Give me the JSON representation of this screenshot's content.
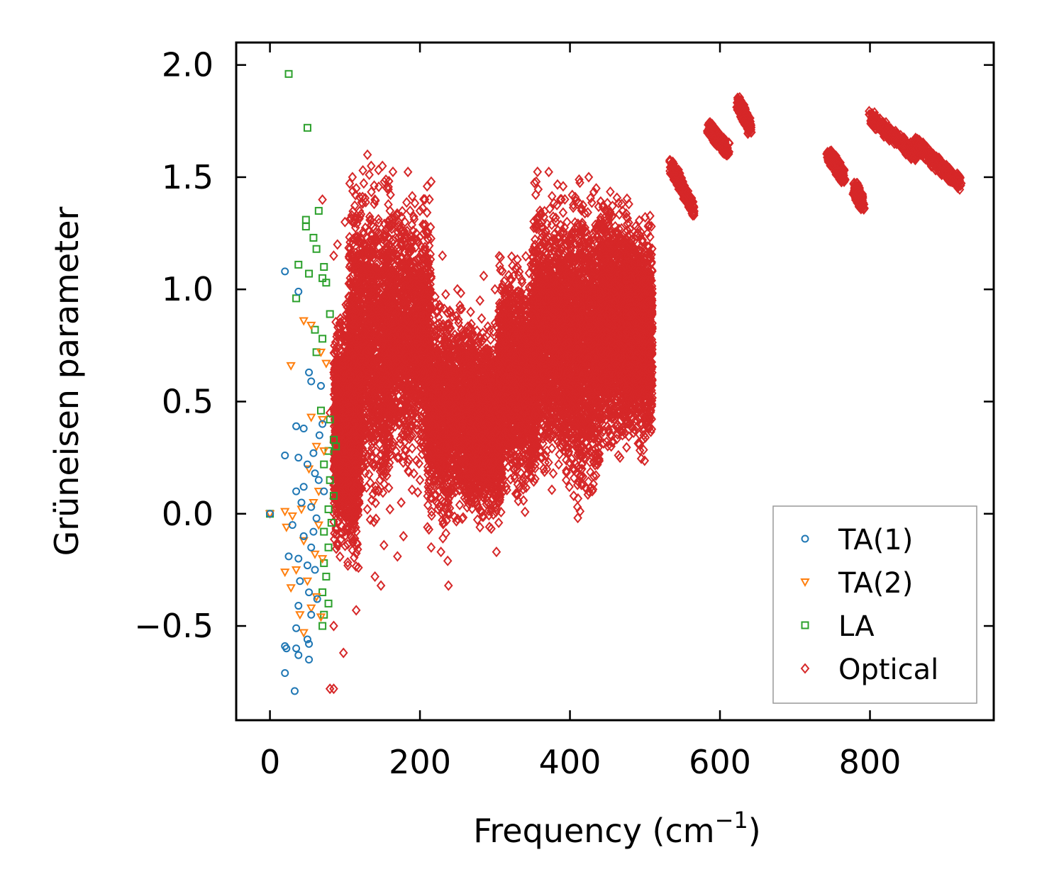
{
  "chart_data": {
    "type": "scatter",
    "title": "",
    "xlabel": "Frequency (cm",
    "xlabel_sup": "−1",
    "xlabel_close": ")",
    "ylabel": "Grüneisen parameter",
    "xlim": [
      -45,
      965
    ],
    "ylim": [
      -0.92,
      2.1
    ],
    "xticks": [
      0,
      200,
      400,
      600,
      800
    ],
    "xtick_labels": [
      "0",
      "200",
      "400",
      "600",
      "800"
    ],
    "yticks": [
      -0.5,
      0.0,
      0.5,
      1.0,
      1.5,
      2.0
    ],
    "ytick_labels": [
      "−0.5",
      "0.0",
      "0.5",
      "1.0",
      "1.5",
      "2.0"
    ],
    "grid": false,
    "legend_position": "bottom-right",
    "series": [
      {
        "name": "TA(1)",
        "marker": "circle",
        "color": "#1f77b4",
        "points": [
          [
            0,
            0
          ],
          [
            20,
            1.08
          ],
          [
            38,
            0.99
          ],
          [
            20,
            0.26
          ],
          [
            35,
            0.39
          ],
          [
            45,
            0.38
          ],
          [
            52,
            0.63
          ],
          [
            55,
            0.59
          ],
          [
            68,
            0.57
          ],
          [
            38,
            0.25
          ],
          [
            50,
            0.22
          ],
          [
            58,
            0.27
          ],
          [
            65,
            0.15
          ],
          [
            72,
            0.1
          ],
          [
            35,
            0.1
          ],
          [
            42,
            0.05
          ],
          [
            55,
            0.03
          ],
          [
            62,
            -0.02
          ],
          [
            30,
            -0.05
          ],
          [
            45,
            -0.1
          ],
          [
            55,
            -0.15
          ],
          [
            25,
            -0.19
          ],
          [
            38,
            -0.2
          ],
          [
            50,
            -0.23
          ],
          [
            60,
            -0.25
          ],
          [
            40,
            -0.3
          ],
          [
            52,
            -0.35
          ],
          [
            63,
            -0.38
          ],
          [
            38,
            -0.41
          ],
          [
            55,
            -0.45
          ],
          [
            35,
            -0.51
          ],
          [
            50,
            -0.56
          ],
          [
            52,
            -0.58
          ],
          [
            20,
            -0.59
          ],
          [
            22,
            -0.6
          ],
          [
            35,
            -0.6
          ],
          [
            38,
            -0.63
          ],
          [
            52,
            -0.65
          ],
          [
            20,
            -0.71
          ],
          [
            33,
            -0.79
          ],
          [
            60,
            0.18
          ],
          [
            66,
            0.35
          ],
          [
            70,
            0.4
          ],
          [
            45,
            0.12
          ],
          [
            58,
            -0.08
          ]
        ]
      },
      {
        "name": "TA(2)",
        "marker": "triangle-down",
        "color": "#ff7f0e",
        "points": [
          [
            0,
            0
          ],
          [
            28,
            0.66
          ],
          [
            45,
            0.86
          ],
          [
            55,
            0.84
          ],
          [
            68,
            0.72
          ],
          [
            75,
            0.67
          ],
          [
            55,
            0.43
          ],
          [
            70,
            0.42
          ],
          [
            62,
            0.3
          ],
          [
            72,
            0.28
          ],
          [
            52,
            0.2
          ],
          [
            65,
            0.1
          ],
          [
            20,
            0.01
          ],
          [
            30,
            -0.01
          ],
          [
            42,
            0.02
          ],
          [
            58,
            0.05
          ],
          [
            22,
            -0.06
          ],
          [
            45,
            -0.12
          ],
          [
            60,
            -0.18
          ],
          [
            20,
            -0.26
          ],
          [
            35,
            -0.25
          ],
          [
            28,
            -0.33
          ],
          [
            50,
            -0.3
          ],
          [
            62,
            -0.37
          ],
          [
            40,
            -0.45
          ],
          [
            55,
            -0.42
          ],
          [
            68,
            -0.46
          ],
          [
            45,
            -0.53
          ],
          [
            70,
            -0.2
          ],
          [
            65,
            -0.05
          ]
        ]
      },
      {
        "name": "LA",
        "marker": "square",
        "color": "#2ca02c",
        "points": [
          [
            0,
            0
          ],
          [
            25,
            1.96
          ],
          [
            50,
            1.72
          ],
          [
            65,
            1.35
          ],
          [
            48,
            1.31
          ],
          [
            48,
            1.28
          ],
          [
            58,
            1.23
          ],
          [
            62,
            1.18
          ],
          [
            38,
            1.11
          ],
          [
            72,
            1.1
          ],
          [
            52,
            1.07
          ],
          [
            70,
            1.05
          ],
          [
            75,
            1.03
          ],
          [
            35,
            0.96
          ],
          [
            80,
            0.89
          ],
          [
            60,
            0.82
          ],
          [
            70,
            0.78
          ],
          [
            62,
            0.72
          ],
          [
            80,
            0.42
          ],
          [
            85,
            0.33
          ],
          [
            78,
            0.28
          ],
          [
            88,
            0.3
          ],
          [
            72,
            0.22
          ],
          [
            80,
            0.15
          ],
          [
            85,
            0.08
          ],
          [
            78,
            0.02
          ],
          [
            82,
            -0.04
          ],
          [
            72,
            -0.08
          ],
          [
            78,
            -0.15
          ],
          [
            72,
            -0.22
          ],
          [
            75,
            -0.28
          ],
          [
            70,
            -0.35
          ],
          [
            78,
            -0.4
          ],
          [
            72,
            -0.45
          ],
          [
            70,
            -0.5
          ],
          [
            68,
            0.46
          ]
        ]
      },
      {
        "name": "Optical",
        "marker": "diamond",
        "color": "#d62728",
        "points": [
          [
            70,
            1.4
          ],
          [
            85,
            1.15
          ],
          [
            90,
            1.2
          ],
          [
            100,
            1.3
          ],
          [
            110,
            1.5
          ],
          [
            115,
            1.45
          ],
          [
            130,
            1.6
          ],
          [
            135,
            1.55
          ],
          [
            150,
            1.55
          ],
          [
            140,
            1.4
          ],
          [
            160,
            1.35
          ],
          [
            180,
            1.3
          ],
          [
            200,
            1.35
          ],
          [
            215,
            1.48
          ],
          [
            230,
            1.15
          ],
          [
            250,
            1.0
          ],
          [
            260,
            0.8
          ],
          [
            280,
            0.95
          ],
          [
            300,
            1.0
          ],
          [
            330,
            1.1
          ],
          [
            355,
            1.48
          ],
          [
            360,
            1.35
          ],
          [
            380,
            1.2
          ],
          [
            400,
            1.15
          ],
          [
            425,
            1.5
          ],
          [
            435,
            1.45
          ],
          [
            450,
            1.3
          ],
          [
            470,
            1.35
          ],
          [
            490,
            1.25
          ],
          [
            505,
            1.1
          ],
          [
            285,
            1.06
          ],
          [
            300,
            0.85
          ],
          [
            335,
            0.9
          ],
          [
            80,
            0.45
          ],
          [
            90,
            0.55
          ],
          [
            100,
            0.7
          ],
          [
            85,
            0.2
          ],
          [
            95,
            0.1
          ],
          [
            100,
            -0.1
          ],
          [
            85,
            -0.5
          ],
          [
            98,
            -0.62
          ],
          [
            115,
            -0.43
          ],
          [
            118,
            -0.24
          ],
          [
            140,
            -0.28
          ],
          [
            148,
            -0.32
          ],
          [
            152,
            -0.14
          ],
          [
            170,
            -0.19
          ],
          [
            178,
            -0.1
          ],
          [
            210,
            -0.06
          ],
          [
            215,
            -0.15
          ],
          [
            228,
            -0.17
          ],
          [
            237,
            -0.21
          ],
          [
            238,
            -0.32
          ],
          [
            302,
            -0.17
          ],
          [
            305,
            -0.04
          ],
          [
            212,
            -0.07
          ],
          [
            280,
            -0.06
          ],
          [
            145,
            0.1
          ],
          [
            175,
            0.05
          ],
          [
            160,
            0.02
          ],
          [
            200,
            0.15
          ],
          [
            240,
            0.0
          ],
          [
            270,
            0.05
          ],
          [
            315,
            0.12
          ],
          [
            335,
            0.18
          ],
          [
            385,
            0.22
          ],
          [
            395,
            0.15
          ],
          [
            405,
            0.08
          ],
          [
            410,
            0.03
          ],
          [
            455,
            0.3
          ],
          [
            470,
            0.35
          ],
          [
            480,
            0.4
          ],
          [
            500,
            0.42
          ],
          [
            80,
            -0.78
          ],
          [
            85,
            -0.78
          ]
        ]
      }
    ],
    "optical_dense_bands": [
      {
        "x_range": [
          85,
          120
        ],
        "y_center": 0.35,
        "y_halfwidth": 0.45
      },
      {
        "x_range": [
          105,
          160
        ],
        "y_center": 0.75,
        "y_halfwidth": 0.6
      },
      {
        "x_range": [
          155,
          215
        ],
        "y_center": 0.8,
        "y_halfwidth": 0.5
      },
      {
        "x_range": [
          210,
          270
        ],
        "y_center": 0.45,
        "y_halfwidth": 0.4
      },
      {
        "x_range": [
          265,
          310
        ],
        "y_center": 0.4,
        "y_halfwidth": 0.35
      },
      {
        "x_range": [
          305,
          355
        ],
        "y_center": 0.6,
        "y_halfwidth": 0.42
      },
      {
        "x_range": [
          350,
          395
        ],
        "y_center": 0.8,
        "y_halfwidth": 0.5
      },
      {
        "x_range": [
          395,
          440
        ],
        "y_center": 0.75,
        "y_halfwidth": 0.55
      },
      {
        "x_range": [
          440,
          480
        ],
        "y_center": 0.85,
        "y_halfwidth": 0.45
      },
      {
        "x_range": [
          475,
          510
        ],
        "y_center": 0.8,
        "y_halfwidth": 0.4
      }
    ],
    "optical_streaks": [
      {
        "from": [
          535,
          1.55
        ],
        "to": [
          565,
          1.35
        ]
      },
      {
        "from": [
          585,
          1.72
        ],
        "to": [
          610,
          1.62
        ]
      },
      {
        "from": [
          625,
          1.83
        ],
        "to": [
          640,
          1.72
        ]
      },
      {
        "from": [
          745,
          1.6
        ],
        "to": [
          765,
          1.5
        ]
      },
      {
        "from": [
          780,
          1.45
        ],
        "to": [
          790,
          1.38
        ]
      },
      {
        "from": [
          800,
          1.77
        ],
        "to": [
          860,
          1.6
        ]
      },
      {
        "from": [
          860,
          1.65
        ],
        "to": [
          920,
          1.47
        ]
      }
    ]
  }
}
